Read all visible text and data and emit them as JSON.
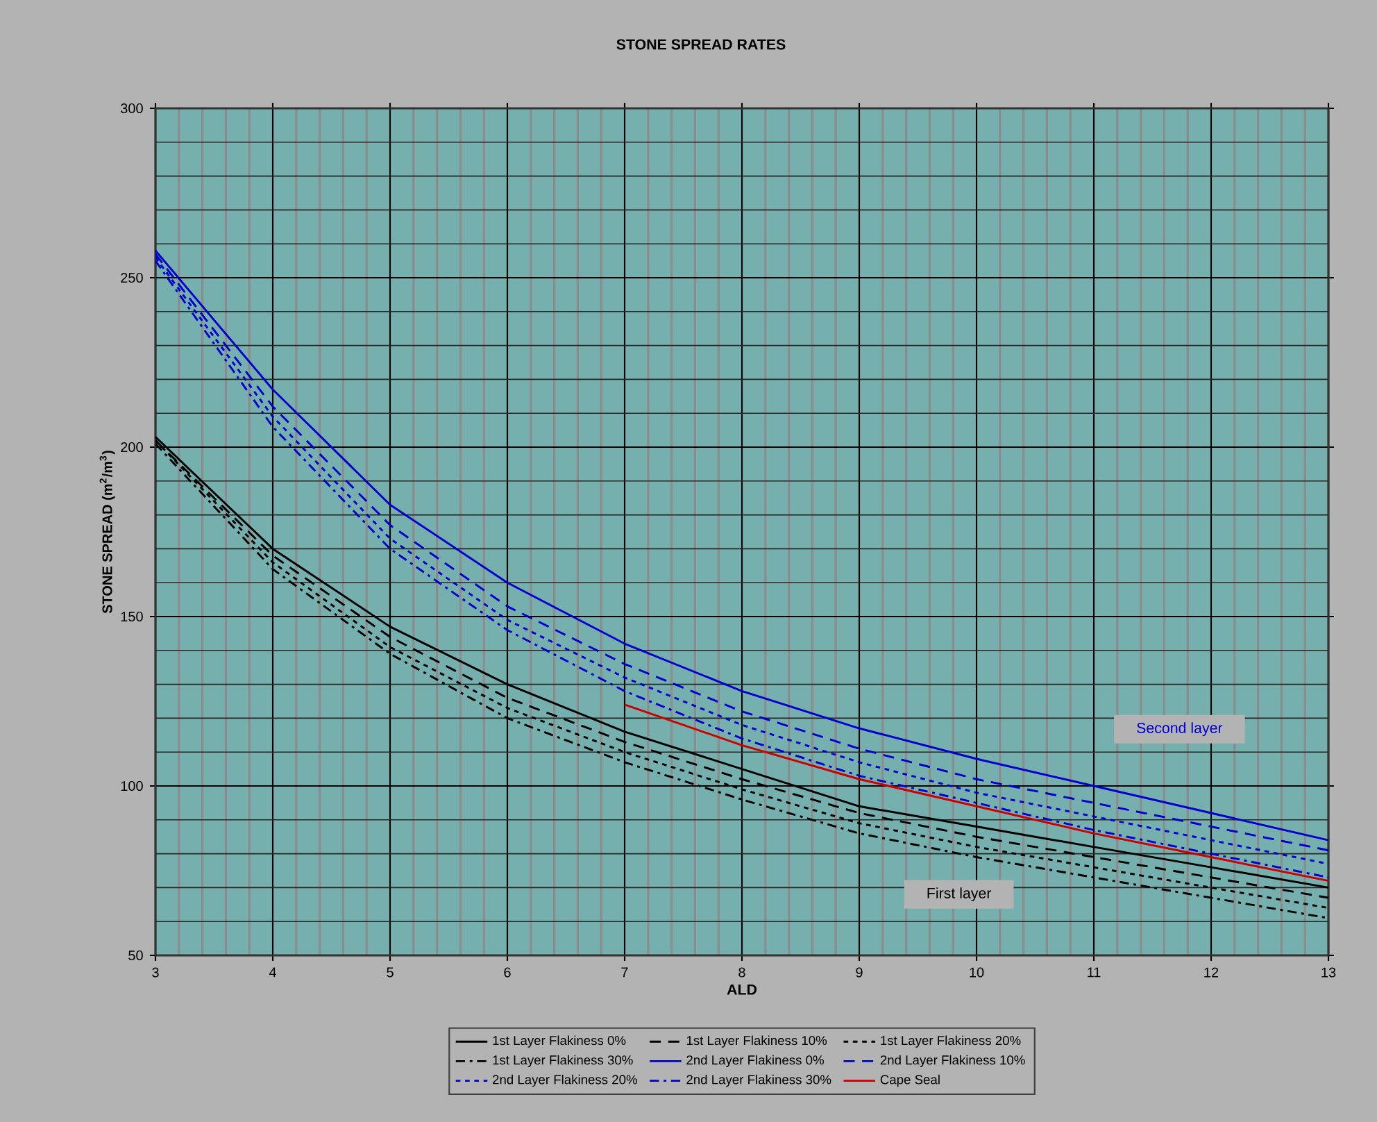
{
  "chart_data": {
    "type": "line",
    "title": "STONE SPREAD RATES",
    "xlabel": "ALD",
    "ylabel": "STONE SPREAD    (m$^{2}$/m$^{3}$)",
    "x": [
      3,
      4,
      5,
      6,
      7,
      8,
      9,
      10,
      11,
      12,
      13
    ],
    "series": [
      {
        "name": "1st Layer Flakiness 0%",
        "color": "#000000",
        "line_style": "solid",
        "values": [
          203,
          170,
          147,
          130,
          116,
          105,
          94,
          88,
          82,
          76,
          70
        ]
      },
      {
        "name": "1st Layer Flakiness 10%",
        "color": "#000000",
        "line_style": "dashed",
        "values": [
          202,
          168,
          144,
          126,
          113,
          102,
          92,
          85,
          79,
          73,
          67
        ]
      },
      {
        "name": "1st Layer Flakiness 20%",
        "color": "#000000",
        "line_style": "dotted",
        "values": [
          202,
          166,
          141,
          123,
          110,
          99,
          89,
          82,
          76,
          70,
          64
        ]
      },
      {
        "name": "1st Layer Flakiness 30%",
        "color": "#000000",
        "line_style": "dashdot",
        "values": [
          201,
          164,
          139,
          120,
          107,
          96,
          86,
          79,
          73,
          67,
          61
        ]
      },
      {
        "name": "2nd Layer Flakiness 0%",
        "color": "#0000cc",
        "line_style": "solid",
        "values": [
          258,
          217,
          183,
          160,
          142,
          128,
          117,
          108,
          100,
          92,
          84
        ]
      },
      {
        "name": "2nd Layer Flakiness 10%",
        "color": "#0000cc",
        "line_style": "dashed",
        "values": [
          257,
          212,
          177,
          153,
          136,
          122,
          111,
          102,
          95,
          88,
          81
        ]
      },
      {
        "name": "2nd Layer Flakiness 20%",
        "color": "#0000cc",
        "line_style": "dotted",
        "values": [
          256,
          209,
          173,
          149,
          132,
          118,
          107,
          98,
          91,
          84,
          77
        ]
      },
      {
        "name": "2nd Layer Flakiness 30%",
        "color": "#0000cc",
        "line_style": "dashdot",
        "values": [
          255,
          206,
          170,
          146,
          128,
          114,
          103,
          95,
          87,
          80,
          73
        ]
      },
      {
        "name": "Cape Seal",
        "color": "#cc0000",
        "line_style": "solid",
        "values": [
          null,
          null,
          null,
          null,
          124,
          112,
          102,
          94,
          86,
          79,
          72
        ]
      }
    ],
    "annotations": [
      "Second layer",
      "First layer"
    ],
    "xlim": [
      3,
      13
    ],
    "ylim": [
      50,
      300
    ],
    "xticks": [
      3,
      4,
      5,
      6,
      7,
      8,
      9,
      10,
      11,
      12,
      13
    ],
    "yticks": [
      50,
      100,
      150,
      200,
      250,
      300
    ],
    "grid": true,
    "legend": "bottom"
  }
}
